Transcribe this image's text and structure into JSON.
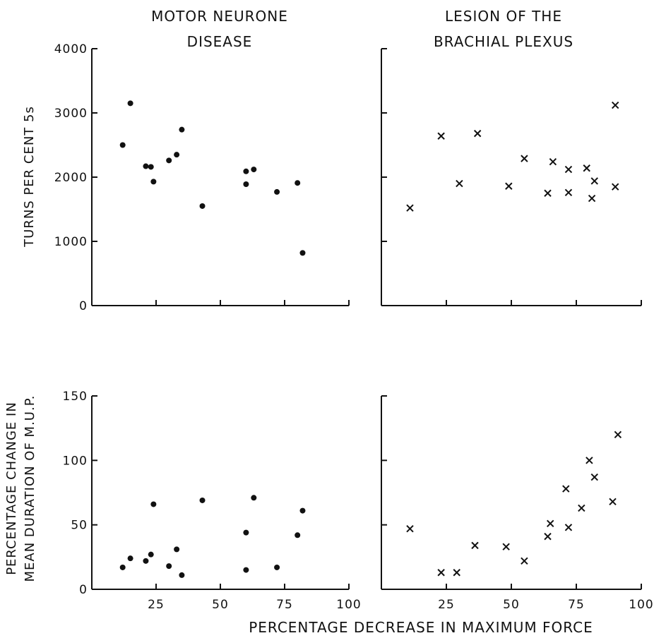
{
  "figure": {
    "left_title": {
      "line1": "MOTOR NEURONE",
      "line2": "DISEASE"
    },
    "right_title": {
      "line1": "LESION OF THE",
      "line2": "BRACHIAL PLEXUS"
    },
    "top_ylabel": "TURNS PER CENT 5s",
    "bottom_ylabel": {
      "line1": "PERCENTAGE CHANGE IN",
      "line2": "MEAN DURATION OF M.U.P."
    },
    "xlabel": "PERCENTAGE DECREASE IN MAXIMUM FORCE",
    "top_yticks": [
      "0",
      "1000",
      "2000",
      "3000",
      "4000"
    ],
    "bottom_yticks": [
      "0",
      "50",
      "100",
      "150"
    ],
    "xticks": [
      "25",
      "50",
      "75",
      "100"
    ]
  },
  "chart_data": [
    {
      "type": "scatter",
      "panel": "top-left",
      "title": "MOTOR NEURONE DISEASE",
      "ylabel": "TURNS PER CENT 5s",
      "xlim": [
        0,
        100
      ],
      "ylim": [
        0,
        4000
      ],
      "marker": "dot",
      "x": [
        12,
        15,
        21,
        23,
        24,
        30,
        33,
        35,
        43,
        60,
        60,
        63,
        72,
        80,
        82
      ],
      "y": [
        2500,
        3150,
        2170,
        2160,
        1930,
        2260,
        2350,
        2740,
        1550,
        2090,
        1890,
        2120,
        1770,
        1910,
        820
      ]
    },
    {
      "type": "scatter",
      "panel": "top-right",
      "title": "LESION OF THE BRACHIAL PLEXUS",
      "xlim": [
        0,
        100
      ],
      "ylim": [
        0,
        4000
      ],
      "marker": "cross",
      "x": [
        11,
        23,
        30,
        37,
        49,
        55,
        64,
        66,
        72,
        72,
        79,
        81,
        82,
        90,
        90
      ],
      "y": [
        1520,
        2640,
        1900,
        2680,
        1860,
        2290,
        1750,
        2240,
        2120,
        1760,
        2140,
        1670,
        1940,
        3120,
        1850
      ]
    },
    {
      "type": "scatter",
      "panel": "bottom-left",
      "ylabel": "PERCENTAGE CHANGE IN MEAN DURATION OF M.U.P.",
      "xlabel": "PERCENTAGE DECREASE IN MAXIMUM FORCE",
      "xlim": [
        0,
        100
      ],
      "ylim": [
        0,
        150
      ],
      "marker": "dot",
      "x": [
        12,
        15,
        21,
        23,
        24,
        30,
        33,
        35,
        43,
        60,
        60,
        63,
        72,
        80,
        82
      ],
      "y": [
        17,
        24,
        22,
        27,
        66,
        18,
        31,
        11,
        69,
        44,
        15,
        71,
        17,
        42,
        61
      ]
    },
    {
      "type": "scatter",
      "panel": "bottom-right",
      "xlabel": "PERCENTAGE DECREASE IN MAXIMUM FORCE",
      "xlim": [
        0,
        100
      ],
      "ylim": [
        0,
        150
      ],
      "marker": "cross",
      "x": [
        11,
        23,
        29,
        36,
        48,
        55,
        64,
        65,
        71,
        72,
        77,
        80,
        82,
        89,
        91
      ],
      "y": [
        47,
        13,
        13,
        34,
        33,
        22,
        41,
        51,
        78,
        48,
        63,
        100,
        87,
        68,
        120
      ]
    }
  ]
}
